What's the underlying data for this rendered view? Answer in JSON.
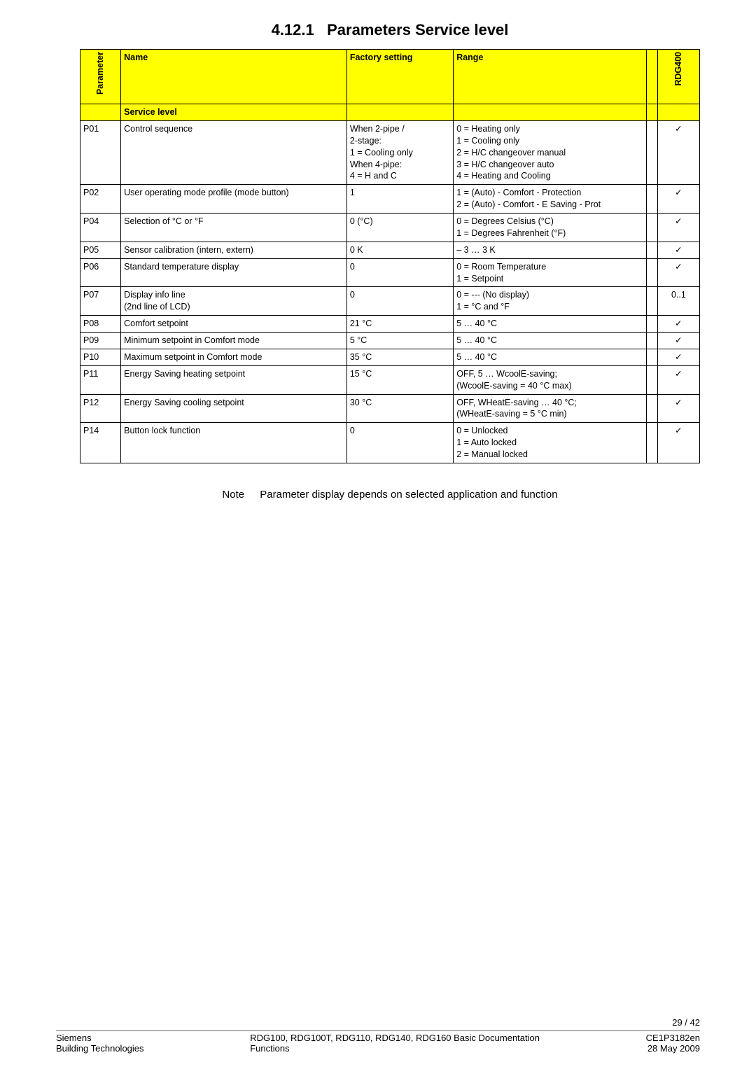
{
  "title_number": "4.12.1",
  "title_text": "Parameters Service level",
  "columns": {
    "param": "Parameter",
    "name": "Name",
    "factory": "Factory setting",
    "range": "Range",
    "rdg": "RDG400"
  },
  "service_level_label": "Service level",
  "rows": [
    {
      "p": "P01",
      "name": "Control sequence",
      "factory": "When 2-pipe /\n2-stage:\n1 = Cooling only\nWhen 4-pipe:\n4 = H and C",
      "range": "0 = Heating only\n1 = Cooling only\n2 = H/C changeover manual\n3 = H/C changeover auto\n4 = Heating and Cooling",
      "rdg": "✓"
    },
    {
      "p": "P02",
      "name": "User operating mode profile (mode button)",
      "factory": "1",
      "range": "1 = (Auto) - Comfort - Protection\n2 = (Auto) - Comfort - E Saving - Prot",
      "rdg": "✓"
    },
    {
      "p": "P04",
      "name": "Selection of °C or °F",
      "factory": "0 (°C)",
      "range": "0 = Degrees Celsius (°C)\n1 = Degrees Fahrenheit (°F)",
      "rdg": "✓"
    },
    {
      "p": "P05",
      "name": "Sensor calibration (intern, extern)",
      "factory": "0 K",
      "range": "– 3 … 3 K",
      "rdg": "✓"
    },
    {
      "p": "P06",
      "name": "Standard temperature display",
      "factory": "0",
      "range": "0 = Room Temperature\n1 = Setpoint",
      "rdg": "✓"
    },
    {
      "p": "P07",
      "name": "Display info line\n(2nd line of LCD)",
      "factory": "0",
      "range": "0 = --- (No display)\n1 = °C and °F",
      "rdg": "0..1"
    },
    {
      "p": "P08",
      "name": "Comfort setpoint",
      "factory": "21 °C",
      "range": "5 … 40 °C",
      "rdg": "✓"
    },
    {
      "p": "P09",
      "name": "Minimum setpoint in Comfort  mode",
      "factory": "5 °C",
      "range": "5 … 40 °C",
      "rdg": "✓"
    },
    {
      "p": "P10",
      "name": "Maximum setpoint in Comfort mode",
      "factory": "35 °C",
      "range": "5 … 40 °C",
      "rdg": "✓"
    },
    {
      "p": "P11",
      "name": "Energy Saving heating setpoint",
      "factory": "15 °C",
      "range": "OFF, 5 … WcoolE-saving;\n(WcoolE-saving = 40 °C max)",
      "rdg": "✓"
    },
    {
      "p": "P12",
      "name": "Energy Saving cooling setpoint",
      "factory": "30 °C",
      "range": "OFF, WHeatE-saving … 40 °C;\n(WHeatE-saving = 5 °C min)",
      "rdg": "✓"
    },
    {
      "p": "P14",
      "name": "Button lock function",
      "factory": "0",
      "range": "0 = Unlocked\n1 = Auto locked\n2 = Manual locked",
      "rdg": "✓"
    }
  ],
  "note_label": "Note",
  "note_text": "Parameter display depends on selected application and function",
  "page_count": "29 / 42",
  "footer": {
    "l1": "Siemens",
    "l2": "Building Technologies",
    "c1": "RDG100, RDG100T, RDG110, RDG140, RDG160 Basic Documentation",
    "c2": "Functions",
    "r1": "CE1P3182en",
    "r2": "28 May 2009"
  }
}
